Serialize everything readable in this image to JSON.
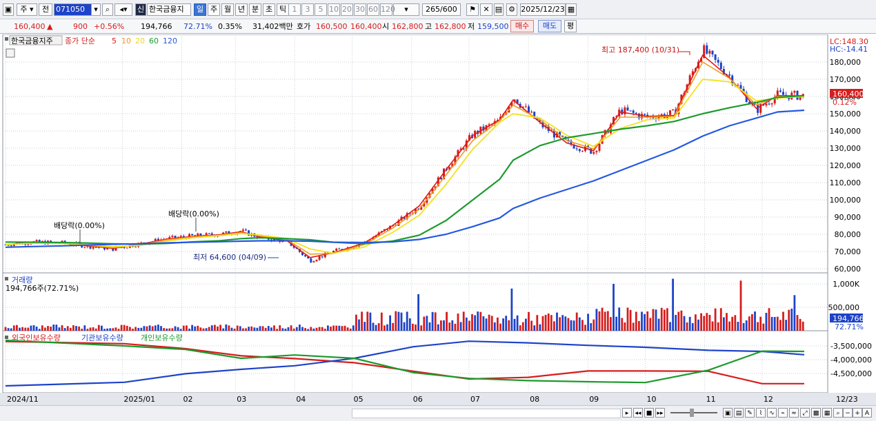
{
  "toolbar": {
    "period_label": "주",
    "compare_label": "전",
    "code": "071050",
    "stock_name": "한국금융지",
    "credit_badge": "신",
    "periods": [
      "일",
      "주",
      "월",
      "년",
      "분",
      "초",
      "틱"
    ],
    "selected_period": "일",
    "numbers": [
      "1",
      "3",
      "5",
      "10",
      "20",
      "30",
      "60",
      "120"
    ],
    "count": "265",
    "count_total": "/600",
    "date": "2025/12/23"
  },
  "quote": {
    "price": "160,400",
    "arrow": "▲",
    "change": "900",
    "change_pct": "+0.56%",
    "volume": "194,766",
    "vol_ratio": "72.71%",
    "turnover_pct": "0.35%",
    "amount": "31,402백만",
    "bid_label": "호가",
    "bid": "160,500",
    "ask": "160,400",
    "open_label": "시",
    "open": "162,800",
    "high_label": "고",
    "high": "162,800",
    "low_label": "저",
    "low": "159,500",
    "buy_button": "매수",
    "sell_button": "매도",
    "eval_button": "평"
  },
  "colors": {
    "up": "#d61c1c",
    "down": "#1d43c8",
    "ma5": "#e01818",
    "ma10": "#f29a1c",
    "ma20": "#f2e21c",
    "ma60": "#1c9a2c",
    "ma120": "#2458e0"
  },
  "price_panel": {
    "name": "한국금융지주",
    "legend_prefix": "종가 단순",
    "ma_labels": [
      "5",
      "10",
      "20",
      "60",
      "120"
    ],
    "lc": "LC:148.30",
    "hc": "HC:-14.41",
    "last_price_tag": "160,400",
    "last_pct_tag": "0.12%",
    "annotations": {
      "high": "최고 187,400 (10/31)",
      "low": "최저 64,600 (04/09)",
      "div1": "배당락(0.00%)",
      "div2": "배당락(0.00%)"
    }
  },
  "volume_panel": {
    "title": "거래량",
    "value_label": "194,766주(72.71%)",
    "tag": "194,766",
    "tag_pct": "72.71%"
  },
  "holding_panel": {
    "titles": [
      "외국인보유수량",
      "기관보유수량",
      "개인보유수량"
    ]
  },
  "x_axis": {
    "labels": [
      "2024/11",
      "2025/01",
      "02",
      "03",
      "04",
      "05",
      "06",
      "07",
      "08",
      "09",
      "10",
      "11",
      "12"
    ],
    "corner": "12/23"
  },
  "chart_data": {
    "type": "line",
    "title": "한국금융지주",
    "price_axis": {
      "ylim": [
        57500,
        190000
      ],
      "ticks": [
        60000,
        70000,
        80000,
        90000,
        100000,
        110000,
        120000,
        130000,
        140000,
        150000,
        160000,
        170000,
        180000
      ],
      "tick_labels": [
        "60,000",
        "70,000",
        "80,000",
        "90,000",
        "100,000",
        "110,000",
        "120,000",
        "130,000",
        "140,000",
        "150,000",
        "160,000",
        "170,000",
        "180,000"
      ]
    },
    "close_path": [
      [
        "2024/11/01",
        74000
      ],
      [
        "2024/11/15",
        75500
      ],
      [
        "2024/12/01",
        75000
      ],
      [
        "2024/12/15",
        73000
      ],
      [
        "2024/12/27",
        71500
      ],
      [
        "2025/01/10",
        74500
      ],
      [
        "2025/01/24",
        77500
      ],
      [
        "2025/02/07",
        79000
      ],
      [
        "2025/02/21",
        80000
      ],
      [
        "2025/03/04",
        82000
      ],
      [
        "2025/03/14",
        78000
      ],
      [
        "2025/03/28",
        76000
      ],
      [
        "2025/04/09",
        64600
      ],
      [
        "2025/04/21",
        70000
      ],
      [
        "2025/05/07",
        75000
      ],
      [
        "2025/05/22",
        85000
      ],
      [
        "2025/06/05",
        96000
      ],
      [
        "2025/06/19",
        118000
      ],
      [
        "2025/07/03",
        138000
      ],
      [
        "2025/07/17",
        146000
      ],
      [
        "2025/07/24",
        160000
      ],
      [
        "2025/08/07",
        144000
      ],
      [
        "2025/08/21",
        133000
      ],
      [
        "2025/09/04",
        128000
      ],
      [
        "2025/09/18",
        152000
      ],
      [
        "2025/10/02",
        148000
      ],
      [
        "2025/10/16",
        150000
      ],
      [
        "2025/10/31",
        187400
      ],
      [
        "2025/11/14",
        172000
      ],
      [
        "2025/11/28",
        152000
      ],
      [
        "2025/12/09",
        161000
      ],
      [
        "2025/12/23",
        160400
      ]
    ],
    "series": [
      {
        "name": "5",
        "values": [
          74000,
          75300,
          74800,
          73200,
          71800,
          74200,
          77200,
          78800,
          79800,
          81500,
          78500,
          76200,
          66500,
          69200,
          74800,
          85000,
          96500,
          117500,
          137500,
          146500,
          158000,
          145000,
          133000,
          128500,
          151000,
          148500,
          149000,
          184000,
          171000,
          153000,
          160500,
          160400
        ]
      },
      {
        "name": "10",
        "values": [
          74000,
          75000,
          74700,
          73500,
          72200,
          73800,
          76800,
          78500,
          79500,
          81000,
          79000,
          76800,
          68500,
          68800,
          74000,
          83500,
          94500,
          114500,
          134500,
          146000,
          155000,
          146500,
          134500,
          129500,
          148000,
          148000,
          148500,
          180000,
          170500,
          155000,
          160000,
          160300
        ]
      },
      {
        "name": "20",
        "values": [
          74000,
          74800,
          74700,
          73900,
          72800,
          73500,
          76000,
          78000,
          79200,
          80500,
          79500,
          77500,
          71500,
          69000,
          72500,
          81000,
          91000,
          109000,
          129500,
          145000,
          150000,
          147500,
          137500,
          131000,
          141500,
          146500,
          147500,
          170000,
          168500,
          157500,
          159000,
          160000
        ]
      },
      {
        "name": "60",
        "values": [
          75500,
          75400,
          75200,
          74900,
          74500,
          74300,
          74700,
          75600,
          76300,
          77500,
          78000,
          77500,
          76800,
          75400,
          74500,
          76000,
          79500,
          88000,
          100000,
          112000,
          123000,
          131500,
          136000,
          138500,
          141000,
          143000,
          145500,
          150000,
          153500,
          156500,
          159500,
          160500
        ]
      },
      {
        "name": "120",
        "values": [
          72500,
          72900,
          73300,
          73800,
          74200,
          74500,
          75000,
          75400,
          75700,
          76000,
          76200,
          76200,
          76000,
          75400,
          75200,
          75600,
          77000,
          80000,
          84500,
          89500,
          95000,
          101000,
          106000,
          111000,
          117000,
          123000,
          129000,
          137000,
          143000,
          147500,
          151000,
          152000
        ]
      }
    ],
    "volume_axis": {
      "ticks": [
        500000,
        1000000
      ],
      "tick_labels": [
        "500,000",
        "1,000K"
      ]
    },
    "volume": [
      [
        "2025/06/05",
        780000
      ],
      [
        "2025/07/24",
        900000
      ],
      [
        "2025/09/15",
        1000000
      ],
      [
        "2025/10/15",
        1110000
      ],
      [
        "2025/11/20",
        1070000
      ],
      [
        "2025/12/18",
        760000
      ],
      [
        "2025/12/23",
        194766
      ]
    ],
    "holding_axis": {
      "ticks": [
        -3500000,
        -4000000,
        -4500000
      ],
      "tick_labels": [
        "-3,500,000",
        "-4,000,000",
        "-4,500,000"
      ]
    },
    "holdings": [
      {
        "name": "외국인보유수량",
        "values": [
          -3340000,
          -3420000,
          -3600000,
          -3860000,
          -3960000,
          -4110000,
          -4420000,
          -4700000,
          -4640000,
          -4410000,
          -4410000,
          -4420000,
          -4870000,
          -4870000
        ]
      },
      {
        "name": "기관보유수량",
        "values": [
          -4950000,
          -4820000,
          -4510000,
          -4350000,
          -4220000,
          -3950000,
          -3530000,
          -3330000,
          -3390000,
          -3480000,
          -3550000,
          -3660000,
          -3700000,
          -3820000
        ]
      },
      {
        "name": "개인보유수량",
        "values": [
          -3300000,
          -3500000,
          -3630000,
          -3950000,
          -3830000,
          -3950000,
          -4470000,
          -4680000,
          -4760000,
          -4800000,
          -4830000,
          -4380000,
          -3690000,
          -3700000
        ]
      }
    ],
    "holding_dates": [
      "2024/11/01",
      "2025/01/02",
      "2025/02/03",
      "2025/03/04",
      "2025/04/01",
      "2025/05/02",
      "2025/06/02",
      "2025/07/01",
      "2025/08/01",
      "2025/09/01",
      "2025/10/01",
      "2025/11/03",
      "2025/12/01",
      "2025/12/23"
    ]
  }
}
